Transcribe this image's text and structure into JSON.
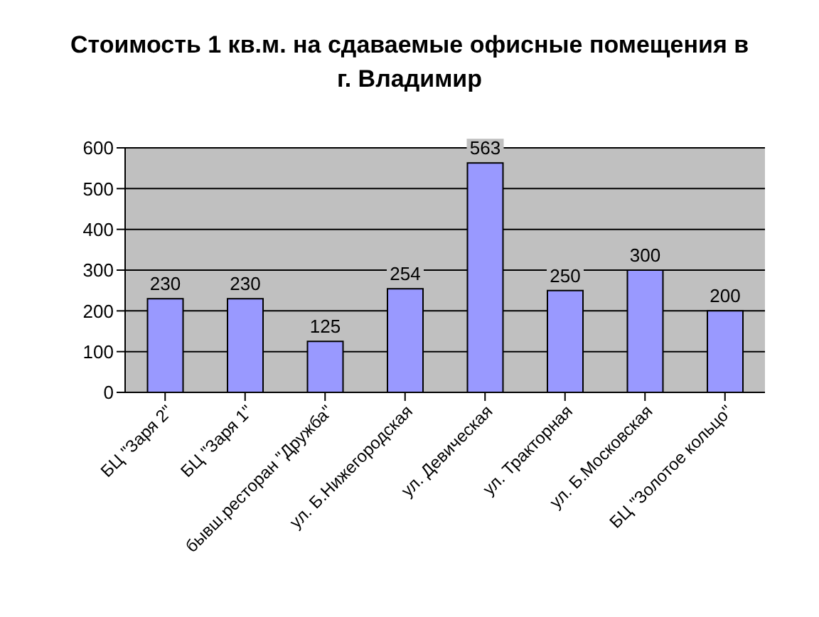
{
  "chart_data": {
    "type": "bar",
    "title": "Стоимость 1 кв.м. на сдаваемые офисные помещения в г. Владимир",
    "categories": [
      "БЦ \"Заря 2\"",
      "БЦ \"Заря 1\"",
      "бывш.ресторан \"Дружба\"",
      "ул. Б.Нижегородская",
      "ул. Девическая",
      "ул. Тракторная",
      "ул. Б.Московская",
      "БЦ \"Золотое кольцо\""
    ],
    "values": [
      230,
      230,
      125,
      254,
      563,
      250,
      300,
      200
    ],
    "color": "#9999ff",
    "ylim": [
      0,
      600
    ],
    "yticks": [
      0,
      100,
      200,
      300,
      400,
      500,
      600
    ],
    "grid": "y",
    "data_labels": true
  }
}
